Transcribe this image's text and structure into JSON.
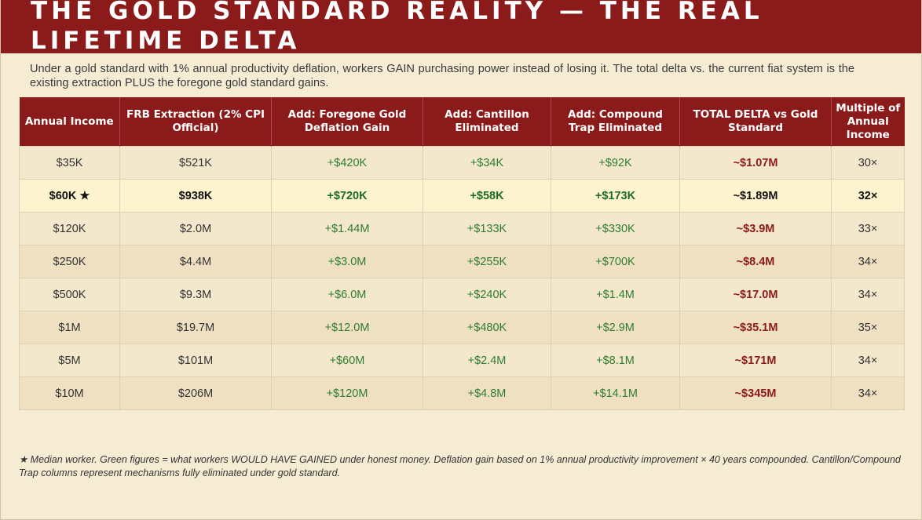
{
  "title": "THE GOLD STANDARD REALITY — THE REAL LIFETIME DELTA",
  "subtitle": "Under a gold standard with 1% annual productivity deflation, workers GAIN purchasing power instead of losing it. The total delta vs. the current fiat system is the existing extraction PLUS the foregone gold standard gains.",
  "table": {
    "headers": [
      "Annual Income",
      "FRB Extraction (2% CPI Official)",
      "Add: Foregone Gold Deflation Gain",
      "Add: Cantillon Eliminated",
      "Add: Compound Trap Eliminated",
      "TOTAL DELTA vs Gold Standard",
      "Multiple of Annual Income"
    ],
    "rows": [
      {
        "income": "$35K",
        "frb": "$521K",
        "deflation": "+$420K",
        "cantillon": "+$34K",
        "compound": "+$92K",
        "total": "~$1.07M",
        "multiple": "30×"
      },
      {
        "income": "$60K ★",
        "frb": "$938K",
        "deflation": "+$720K",
        "cantillon": "+$58K",
        "compound": "+$173K",
        "total": "~$1.89M",
        "multiple": "32×"
      },
      {
        "income": "$120K",
        "frb": "$2.0M",
        "deflation": "+$1.44M",
        "cantillon": "+$133K",
        "compound": "+$330K",
        "total": "~$3.9M",
        "multiple": "33×"
      },
      {
        "income": "$250K",
        "frb": "$4.4M",
        "deflation": "+$3.0M",
        "cantillon": "+$255K",
        "compound": "+$700K",
        "total": "~$8.4M",
        "multiple": "34×"
      },
      {
        "income": "$500K",
        "frb": "$9.3M",
        "deflation": "+$6.0M",
        "cantillon": "+$240K",
        "compound": "+$1.4M",
        "total": "~$17.0M",
        "multiple": "34×"
      },
      {
        "income": "$1M",
        "frb": "$19.7M",
        "deflation": "+$12.0M",
        "cantillon": "+$480K",
        "compound": "+$2.9M",
        "total": "~$35.1M",
        "multiple": "35×"
      },
      {
        "income": "$5M",
        "frb": "$101M",
        "deflation": "+$60M",
        "cantillon": "+$2.4M",
        "compound": "+$8.1M",
        "total": "~$171M",
        "multiple": "34×"
      },
      {
        "income": "$10M",
        "frb": "$206M",
        "deflation": "+$120M",
        "cantillon": "+$4.8M",
        "compound": "+$14.1M",
        "total": "~$345M",
        "multiple": "34×"
      }
    ]
  },
  "footnote": "★ Median worker. Green figures = what workers WOULD HAVE GAINED under honest money. Deflation gain based on 1% annual productivity improvement × 40 years compounded. Cantillon/Compound Trap columns represent mechanisms fully eliminated under gold standard.",
  "colors": {
    "title_bg": "#8b1a1a",
    "page_bg": "#f6ecd4",
    "gain": "#2e7d32",
    "total": "#8b1a1a",
    "highlight": "#fdf4cf"
  }
}
